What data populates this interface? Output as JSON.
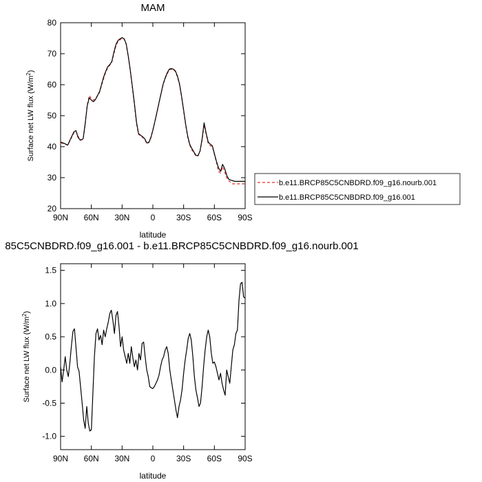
{
  "chart_data": [
    {
      "type": "line",
      "title": "MAM",
      "xlabel": "latitude",
      "ylabel": "Surface net LW flux (W/m",
      "ylabel_sup": "2",
      "ylabel_close": ")",
      "xlim": [
        90,
        -90
      ],
      "ylim": [
        20,
        80
      ],
      "xticks": [
        {
          "value": 90,
          "label": "90N"
        },
        {
          "value": 60,
          "label": "60N"
        },
        {
          "value": 30,
          "label": "30N"
        },
        {
          "value": 0,
          "label": "0"
        },
        {
          "value": -30,
          "label": "30S"
        },
        {
          "value": -60,
          "label": "60S"
        },
        {
          "value": -90,
          "label": "90S"
        }
      ],
      "yticks": [
        {
          "value": 20,
          "label": "20"
        },
        {
          "value": 30,
          "label": "30"
        },
        {
          "value": 40,
          "label": "40"
        },
        {
          "value": 50,
          "label": "50"
        },
        {
          "value": 60,
          "label": "60"
        },
        {
          "value": 70,
          "label": "70"
        },
        {
          "value": 80,
          "label": "80"
        }
      ],
      "legend_position": "right",
      "series": [
        {
          "name": "b.e11.BRCP85C5CNBDRD.f09_g16.nourb.001",
          "color": "#e0302a",
          "dash": "dashed",
          "x": [
            90,
            86,
            83,
            80,
            77,
            75,
            73,
            71,
            69,
            68,
            66,
            64,
            62,
            60,
            58,
            56,
            54,
            52,
            50,
            48,
            46,
            44,
            42,
            40,
            38,
            36,
            34,
            32,
            30,
            28,
            26,
            24,
            22,
            20,
            18,
            16,
            14,
            12,
            10,
            8,
            6,
            4,
            2,
            0,
            -2,
            -4,
            -6,
            -8,
            -10,
            -12,
            -14,
            -16,
            -18,
            -20,
            -22,
            -24,
            -26,
            -28,
            -30,
            -32,
            -34,
            -36,
            -38,
            -40,
            -42,
            -44,
            -46,
            -48,
            -50,
            -52,
            -54,
            -56,
            -58,
            -60,
            -62,
            -64,
            -66,
            -68,
            -70,
            -72,
            -74,
            -76,
            -78,
            -80,
            -82,
            -84,
            -86,
            -88,
            -90
          ],
          "y": [
            41.3,
            40.8,
            40.5,
            42.5,
            44.5,
            45.0,
            43.5,
            42.0,
            42.3,
            42.5,
            47.0,
            53.5,
            56.5,
            55.5,
            55.0,
            55.5,
            56.5,
            57.5,
            59.8,
            62.0,
            64.0,
            65.5,
            66.3,
            67.3,
            70.0,
            72.5,
            74.0,
            74.5,
            75.0,
            74.7,
            73.0,
            69.0,
            64.5,
            59.0,
            53.5,
            47.5,
            44.0,
            43.5,
            43.0,
            42.5,
            41.0,
            41.5,
            43.0,
            45.5,
            48.0,
            51.0,
            54.0,
            57.0,
            60.0,
            62.0,
            63.5,
            64.8,
            65.0,
            64.9,
            64.2,
            62.5,
            60.0,
            56.0,
            51.5,
            47.0,
            43.0,
            40.5,
            39.0,
            38.0,
            37.0,
            37.0,
            38.5,
            42.0,
            47.0,
            44.0,
            41.0,
            40.3,
            40.0,
            37.5,
            35.0,
            32.0,
            31.5,
            33.5,
            32.0,
            30.0,
            29.0,
            28.5,
            28.0,
            28.0,
            28.0,
            28.0,
            28.0,
            28.0,
            28.0
          ]
        },
        {
          "name": "b.e11.BRCP85C5CNBDRD.f09_g16.001",
          "color": "#000000",
          "dash": "solid",
          "x": [
            90,
            86,
            83,
            80,
            77,
            75,
            73,
            71,
            69,
            68,
            66,
            64,
            62,
            60,
            58,
            56,
            54,
            52,
            50,
            48,
            46,
            44,
            42,
            40,
            38,
            36,
            34,
            32,
            30,
            28,
            26,
            24,
            22,
            20,
            18,
            16,
            14,
            12,
            10,
            8,
            6,
            4,
            2,
            0,
            -2,
            -4,
            -6,
            -8,
            -10,
            -12,
            -14,
            -16,
            -18,
            -20,
            -22,
            -24,
            -26,
            -28,
            -30,
            -32,
            -34,
            -36,
            -38,
            -40,
            -42,
            -44,
            -46,
            -48,
            -50,
            -52,
            -54,
            -56,
            -58,
            -60,
            -62,
            -64,
            -66,
            -68,
            -70,
            -72,
            -74,
            -76,
            -78,
            -80,
            -82,
            -84,
            -86,
            -88,
            -90
          ],
          "y": [
            41.5,
            41.0,
            40.5,
            42.7,
            44.8,
            45.2,
            43.0,
            42.2,
            42.3,
            42.6,
            47.5,
            53.2,
            55.8,
            55.0,
            54.5,
            55.2,
            56.5,
            57.8,
            60.2,
            62.5,
            64.3,
            65.8,
            66.5,
            67.5,
            70.5,
            73.0,
            74.3,
            74.8,
            75.2,
            74.8,
            73.2,
            69.2,
            64.7,
            59.5,
            54.0,
            48.0,
            44.2,
            43.7,
            43.2,
            42.6,
            41.2,
            41.3,
            42.8,
            45.3,
            48.2,
            51.2,
            54.2,
            57.2,
            60.2,
            62.2,
            63.8,
            65.0,
            65.2,
            65.0,
            64.4,
            62.8,
            60.3,
            56.3,
            51.8,
            47.3,
            43.4,
            40.7,
            39.4,
            38.3,
            37.2,
            37.1,
            38.6,
            42.5,
            47.7,
            44.3,
            41.5,
            40.8,
            40.3,
            37.8,
            35.3,
            33.2,
            32.0,
            34.3,
            33.0,
            30.8,
            29.5,
            29.2,
            29.0,
            28.8,
            28.8,
            28.8,
            28.8,
            28.8,
            28.8
          ]
        }
      ]
    },
    {
      "type": "line",
      "title": "85C5CNBDRD.f09_g16.001 - b.e11.BRCP85C5CNBDRD.f09_g16.nourb.001",
      "xlabel": "latitude",
      "ylabel": "Surface net LW flux (W/m",
      "ylabel_sup": "2",
      "ylabel_close": ")",
      "xlim": [
        90,
        -90
      ],
      "ylim": [
        -1.2,
        1.6
      ],
      "xticks": [
        {
          "value": 90,
          "label": "90N"
        },
        {
          "value": 60,
          "label": "60N"
        },
        {
          "value": 30,
          "label": "30N"
        },
        {
          "value": 0,
          "label": "0"
        },
        {
          "value": -30,
          "label": "30S"
        },
        {
          "value": -60,
          "label": "60S"
        },
        {
          "value": -90,
          "label": "90S"
        }
      ],
      "yticks": [
        {
          "value": -1.0,
          "label": "-1.0"
        },
        {
          "value": -0.5,
          "label": "-0.5"
        },
        {
          "value": 0.0,
          "label": "0.0"
        },
        {
          "value": 0.5,
          "label": "0.5"
        },
        {
          "value": 1.0,
          "label": "1.0"
        },
        {
          "value": 1.5,
          "label": "1.5"
        }
      ],
      "series": [
        {
          "color": "#000000",
          "x": [
            90,
            88.5,
            87,
            85.5,
            84,
            82.5,
            81,
            79.5,
            78,
            76.5,
            75,
            73.5,
            72,
            70.5,
            69,
            67.5,
            66,
            64.5,
            63,
            61.5,
            60,
            58.5,
            57,
            55.5,
            54,
            52.5,
            51,
            49.5,
            48,
            46.5,
            45,
            43.5,
            42,
            40.5,
            39,
            37.5,
            36,
            34.5,
            33,
            31.5,
            30,
            28.5,
            27,
            25.5,
            24,
            22.5,
            21,
            19.5,
            18,
            16.5,
            15,
            13.5,
            12,
            10.5,
            9,
            7.5,
            6,
            4.5,
            3,
            1.5,
            0,
            -1.5,
            -3,
            -4.5,
            -6,
            -7.5,
            -9,
            -10.5,
            -12,
            -13.5,
            -15,
            -16.5,
            -18,
            -19.5,
            -21,
            -22.5,
            -24,
            -25.5,
            -27,
            -28.5,
            -30,
            -31.5,
            -33,
            -34.5,
            -36,
            -37.5,
            -39,
            -40.5,
            -42,
            -43.5,
            -45,
            -46.5,
            -48,
            -49.5,
            -51,
            -52.5,
            -54,
            -55.5,
            -57,
            -58.5,
            -60,
            -61.5,
            -63,
            -64.5,
            -66,
            -67.5,
            -69,
            -70.5,
            -72,
            -73.5,
            -75,
            -76.5,
            -78,
            -79.5,
            -81,
            -82.5,
            -84,
            -85.5,
            -87,
            -88.5,
            -90
          ],
          "y": [
            0.05,
            -0.18,
            0.0,
            0.2,
            0.0,
            -0.1,
            0.1,
            0.35,
            0.58,
            0.62,
            0.35,
            0.05,
            -0.02,
            -0.25,
            -0.5,
            -0.75,
            -0.88,
            -0.55,
            -0.8,
            -0.92,
            -0.9,
            -0.35,
            0.2,
            0.55,
            0.62,
            0.45,
            0.52,
            0.38,
            0.6,
            0.5,
            0.62,
            0.72,
            0.85,
            0.9,
            0.75,
            0.55,
            0.82,
            0.88,
            0.65,
            0.35,
            0.5,
            0.3,
            0.2,
            0.1,
            0.25,
            0.1,
            0.35,
            0.18,
            0.05,
            0.15,
            0.0,
            0.25,
            0.15,
            0.4,
            0.42,
            0.2,
            0.0,
            -0.1,
            -0.25,
            -0.27,
            -0.28,
            -0.25,
            -0.2,
            -0.15,
            -0.08,
            0.05,
            0.15,
            0.2,
            0.3,
            0.35,
            0.25,
            0.0,
            -0.15,
            -0.3,
            -0.45,
            -0.6,
            -0.72,
            -0.55,
            -0.45,
            -0.3,
            -0.05,
            0.15,
            0.3,
            0.48,
            0.55,
            0.45,
            0.2,
            -0.1,
            -0.3,
            -0.42,
            -0.55,
            -0.5,
            -0.25,
            0.05,
            0.3,
            0.5,
            0.6,
            0.5,
            0.25,
            0.1,
            0.12,
            0.05,
            -0.05,
            -0.15,
            -0.05,
            -0.2,
            -0.3,
            -0.38,
            0.0,
            -0.1,
            -0.2,
            0.05,
            0.3,
            0.38,
            0.55,
            0.6,
            1.05,
            1.3,
            1.32,
            1.1,
            1.08
          ]
        }
      ]
    }
  ]
}
